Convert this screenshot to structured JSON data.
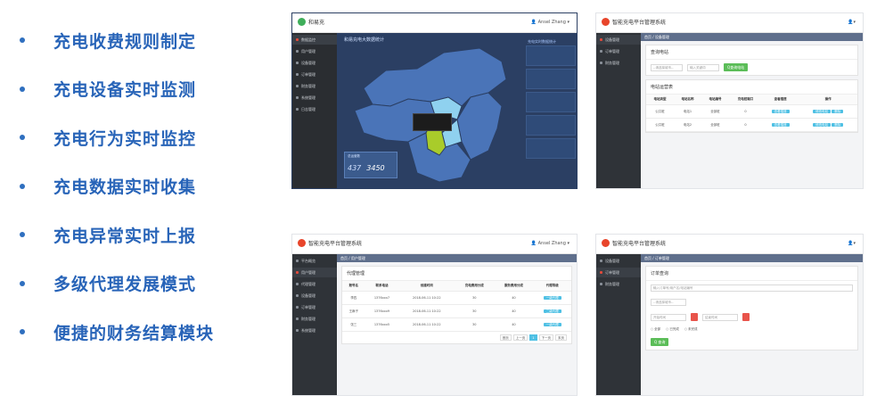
{
  "features": [
    "充电收费规则制定",
    "充电设备实时监测",
    "充电行为实时监控",
    "充电数据实时收集",
    "充电异常实时上报",
    "多级代理发展模式",
    "便捷的财务结算模块"
  ],
  "colors": {
    "accent": "#2864b8",
    "sidebar": "#2f3338",
    "dashboard_bg": "#2b3f63",
    "map_fill": "#4a74b8",
    "highlight": "#a9cc2a",
    "green_button": "#5bbd58",
    "blue_button": "#4ec0e4"
  },
  "shot1": {
    "brand": "和易充",
    "user": "Ansel Zhang",
    "dashboard_title": "和易充电大数据统计",
    "stats_title": "充电实时数据统计",
    "kpi_label": "总运营数",
    "kpi_values": [
      "437",
      "3450"
    ],
    "sidebar_items": [
      "数据监控",
      "用户管理",
      "设备管理",
      "订单管理",
      "财务管理",
      "系统管理",
      "日志管理"
    ]
  },
  "shot2": {
    "title": "智能充电平台管理系统",
    "breadcrumb": "首页 / 设备管理",
    "search_card": "查询电站",
    "select_placeholder": "--请选择城市--",
    "input_placeholder": "输入关键词",
    "search_button": "Q查询电站",
    "list_card": "电站运营表",
    "columns": [
      "电站类型",
      "电站名称",
      "电站编号",
      "充电桩端口",
      "查看插座",
      "操作"
    ],
    "rows": [
      {
        "type": "公共桩",
        "name": "电站1",
        "code": "全部桩",
        "ports": "0",
        "view": "查看插座",
        "edit": "修改电站",
        "del": "删除"
      },
      {
        "type": "公共桩",
        "name": "电站2",
        "code": "全部桩",
        "ports": "0",
        "view": "查看插座",
        "edit": "修改电站",
        "del": "删除"
      }
    ],
    "sidebar_items": [
      "设备管理",
      "订单管理",
      "财务管理"
    ]
  },
  "shot3": {
    "title": "智能充电平台管理系统",
    "user": "Ansel Zhang",
    "breadcrumb": "首页 / 用户管理",
    "card_title": "代理管理",
    "columns": [
      "账号名",
      "联系电话",
      "创建时间",
      "充电费用分成",
      "服务费用分成",
      "代理等级"
    ],
    "rows": [
      {
        "name": "李四",
        "phone": "1376xxx7",
        "time": "2018-06-11 10:22",
        "fee": "30",
        "svc": "40",
        "level": "一级代理"
      },
      {
        "name": "王麻子",
        "phone": "1376xxx9",
        "time": "2018-06-11 10:22",
        "fee": "30",
        "svc": "40",
        "level": "二级代理"
      },
      {
        "name": "张三",
        "phone": "1376xxx5",
        "time": "2018-06-11 10:22",
        "fee": "30",
        "svc": "40",
        "level": "一级代理"
      }
    ],
    "pager": [
      "首页",
      "上一页",
      "1",
      "下一页",
      "末页"
    ],
    "sidebar_items": [
      "平台概览",
      "用户管理",
      "代理管理",
      "设备管理",
      "订单管理",
      "财务管理",
      "系统管理"
    ]
  },
  "shot4": {
    "title": "智能充电平台管理系统",
    "breadcrumb": "首页 / 订单管理",
    "card_title": "订单查询",
    "order_placeholder": "输入订单号/用户名/电站编号",
    "select_placeholder": "--请选择城市--",
    "start_placeholder": "开始时间",
    "end_placeholder": "结束时间",
    "radios": [
      "全部",
      "已完成",
      "未完成"
    ],
    "query_button": "Q 查询",
    "sidebar_items": [
      "设备管理",
      "订单管理",
      "财务管理"
    ]
  }
}
